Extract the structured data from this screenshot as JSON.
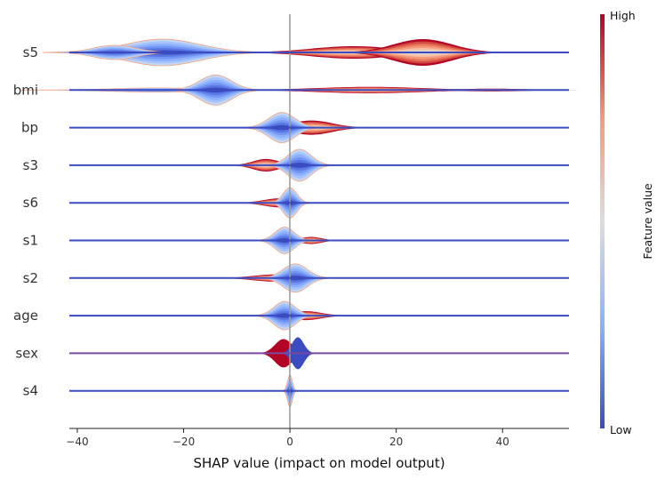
{
  "chart_data": {
    "type": "layered-violin",
    "xlabel": "SHAP value (impact on model output)",
    "xlim": [
      -41.5,
      52.5
    ],
    "xticks": [
      -40,
      -20,
      0,
      20,
      40
    ],
    "xtick_labels": [
      "−40",
      "−20",
      "0",
      "20",
      "40"
    ],
    "features": [
      "s5",
      "bmi",
      "bp",
      "s3",
      "s6",
      "s1",
      "s2",
      "age",
      "sex",
      "s4"
    ],
    "density_components": {
      "s5": [
        {
          "x": -24,
          "sd": 7,
          "h": 0.75,
          "value": "low"
        },
        {
          "x": -33,
          "sd": 4,
          "h": 0.4,
          "value": "low"
        },
        {
          "x": 12,
          "sd": 8,
          "h": 0.35,
          "value": "high"
        },
        {
          "x": 25,
          "sd": 5.5,
          "h": 0.75,
          "value": "high"
        }
      ],
      "bmi": [
        {
          "x": -25,
          "sd": 8,
          "h": 0.12,
          "value": "low"
        },
        {
          "x": -14,
          "sd": 3,
          "h": 0.85,
          "value": "low"
        },
        {
          "x": 15,
          "sd": 10,
          "h": 0.18,
          "value": "high"
        },
        {
          "x": 38,
          "sd": 6,
          "h": 0.08,
          "value": "high"
        }
      ],
      "bp": [
        {
          "x": 4,
          "sd": 4,
          "h": 0.4,
          "value": "high"
        },
        {
          "x": -1.5,
          "sd": 2.5,
          "h": 0.85,
          "value": "low"
        }
      ],
      "s3": [
        {
          "x": -4.5,
          "sd": 2.5,
          "h": 0.35,
          "value": "high"
        },
        {
          "x": 1.8,
          "sd": 2.2,
          "h": 0.9,
          "value": "low"
        }
      ],
      "s6": [
        {
          "x": -2,
          "sd": 3,
          "h": 0.25,
          "value": "high"
        },
        {
          "x": 0,
          "sd": 1.3,
          "h": 0.85,
          "value": "low"
        }
      ],
      "s1": [
        {
          "x": 4,
          "sd": 2,
          "h": 0.2,
          "value": "high"
        },
        {
          "x": -1,
          "sd": 1.8,
          "h": 0.75,
          "value": "low"
        }
      ],
      "s2": [
        {
          "x": -3,
          "sd": 4,
          "h": 0.2,
          "value": "high"
        },
        {
          "x": 1,
          "sd": 2.3,
          "h": 0.8,
          "value": "low"
        }
      ],
      "age": [
        {
          "x": 3,
          "sd": 3,
          "h": 0.25,
          "value": "high"
        },
        {
          "x": -1,
          "sd": 2,
          "h": 0.8,
          "value": "low"
        }
      ],
      "sex": [
        {
          "x": -1.2,
          "sd": 1.6,
          "h": 0.8,
          "value": "high"
        },
        {
          "x": 1.5,
          "sd": 1.1,
          "h": 0.9,
          "value": "low"
        }
      ],
      "s4": [
        {
          "x": 0,
          "sd": 0.45,
          "h": 0.9,
          "value": "low"
        }
      ]
    },
    "colorbar": {
      "label": "Feature value",
      "high_label": "High",
      "low_label": "Low",
      "high_color": "#b40426",
      "low_color": "#3b4cc0",
      "mid_color": "#dddddd"
    },
    "zero_line": 0,
    "grid": false
  }
}
